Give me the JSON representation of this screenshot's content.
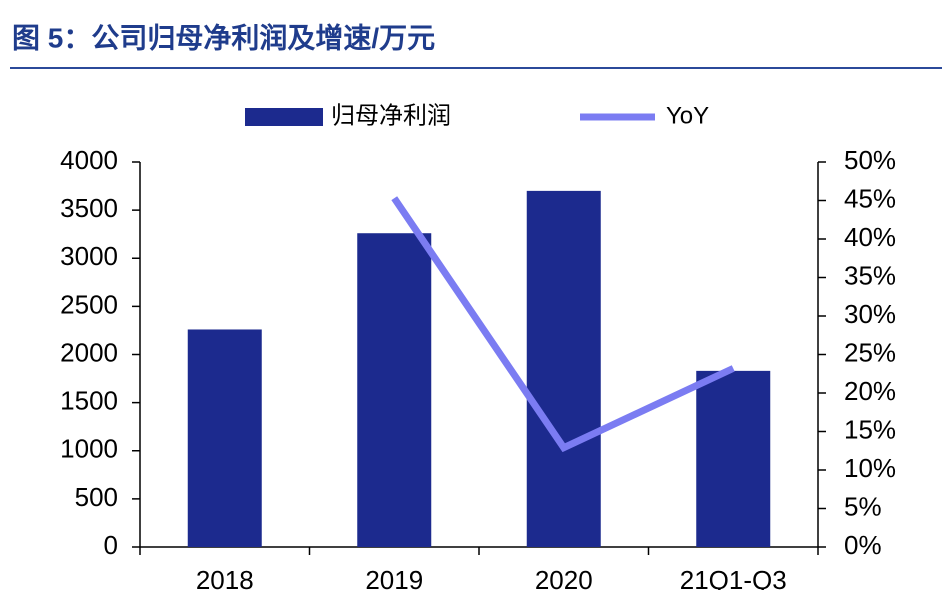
{
  "chart_data": {
    "type": "bar_line",
    "title": "图 5：公司归母净利润及增速/万元",
    "categories": [
      "2018",
      "2019",
      "2020",
      "21Q1-Q3"
    ],
    "series": [
      {
        "name": "归母净利润",
        "color": "#1c2a8e",
        "type": "bar",
        "values": [
          2260,
          3260,
          3700,
          1830
        ]
      },
      {
        "name": "YoY",
        "color": "#7b7cf2",
        "type": "line",
        "axis": "y2",
        "values": [
          null,
          45.3,
          12.9,
          23.2
        ]
      }
    ],
    "ylim": [
      0,
      4000
    ],
    "yticks": [
      0,
      500,
      1000,
      1500,
      2000,
      2500,
      3000,
      3500,
      4000
    ],
    "y2lim": [
      0,
      50
    ],
    "y2ticks": [
      {
        "value": 0,
        "label": "0%"
      },
      {
        "value": 5,
        "label": "5%"
      },
      {
        "value": 10,
        "label": "10%"
      },
      {
        "value": 15,
        "label": "15%"
      },
      {
        "value": 20,
        "label": "20%"
      },
      {
        "value": 25,
        "label": "25%"
      },
      {
        "value": 30,
        "label": "30%"
      },
      {
        "value": 35,
        "label": "35%"
      },
      {
        "value": 40,
        "label": "40%"
      },
      {
        "value": 45,
        "label": "45%"
      },
      {
        "value": 50,
        "label": "50%"
      }
    ],
    "legend": "top"
  }
}
